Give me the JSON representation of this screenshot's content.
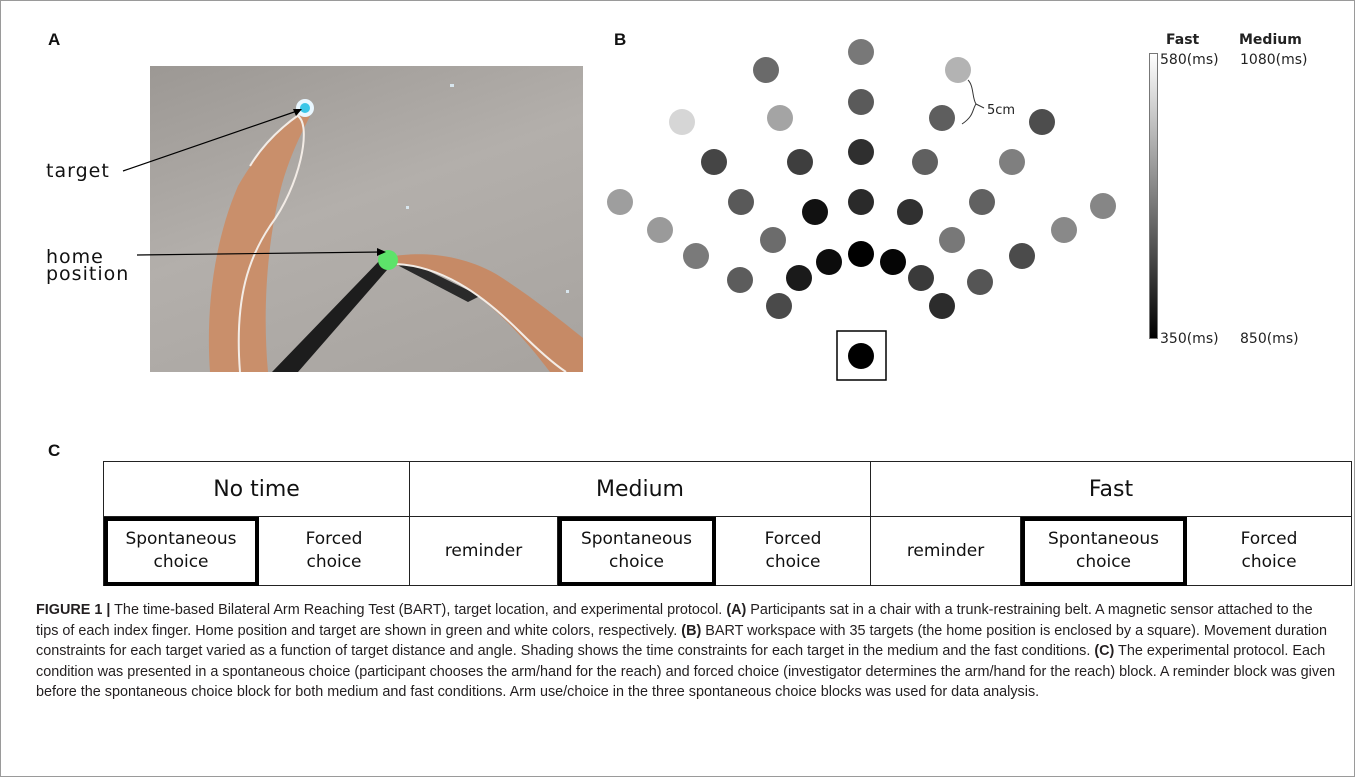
{
  "panels": {
    "a": "A",
    "b": "B",
    "c": "C"
  },
  "panel_a": {
    "target_label": "target",
    "home_label_line1": "home",
    "home_label_line2": "position"
  },
  "panel_b": {
    "scale_label": "5cm",
    "colorbar": {
      "head_fast": "Fast",
      "head_medium": "Medium",
      "top_fast": "580(ms)",
      "top_medium": "1080(ms)",
      "bottom_fast": "350(ms)",
      "bottom_medium": "850(ms)"
    },
    "target_shades": [
      "#787878",
      "#6a6a6a",
      "#b3b3b3",
      "#5a5a5a",
      "#d6d6d6",
      "#a4a4a4",
      "#5e5e5e",
      "#4d4d4d",
      "#2f2f2f",
      "#454545",
      "#3e3e3e",
      "#606060",
      "#7f7f7f",
      "#9e9e9e",
      "#595959",
      "#111111",
      "#2a2a2a",
      "#303030",
      "#616161",
      "#868686",
      "#0c0c0c",
      "#000000",
      "#050505",
      "#1a1a1a",
      "#3a3a3a",
      "#6c6c6c",
      "#787878",
      "#9a9a9a",
      "#898989",
      "#7a7a7a",
      "#4b4b4b",
      "#5c5c5c",
      "#555555",
      "#4a4a4a",
      "#2c2c2c"
    ],
    "home_color": "#000000"
  },
  "protocol": {
    "groups": [
      "No time",
      "Medium",
      "Fast"
    ],
    "cells": [
      {
        "line1": "Spontaneous",
        "line2": "choice",
        "highlight": true
      },
      {
        "line1": "Forced",
        "line2": "choice",
        "highlight": false
      },
      {
        "line1": "reminder",
        "line2": "",
        "highlight": false
      },
      {
        "line1": "Spontaneous",
        "line2": "choice",
        "highlight": true
      },
      {
        "line1": "Forced",
        "line2": "choice",
        "highlight": false
      },
      {
        "line1": "reminder",
        "line2": "",
        "highlight": false
      },
      {
        "line1": "Spontaneous",
        "line2": "choice",
        "highlight": true
      },
      {
        "line1": "Forced",
        "line2": "choice",
        "highlight": false
      }
    ]
  },
  "caption": {
    "figure_label": "FIGURE 1 |",
    "intro": " The time-based Bilateral Arm Reaching Test (BART), target location, and experimental protocol. ",
    "a_tag": "(A)",
    "a_text": " Participants sat in a chair with a trunk-restraining belt. A magnetic sensor attached to the tips of each index finger. Home position and target are shown in green and white colors, respectively. ",
    "b_tag": "(B)",
    "b_text": " BART workspace with 35 targets (the home position is enclosed by a square). Movement duration constraints for each target varied as a function of target distance and angle. Shading shows the time constraints for each target in the medium and the fast conditions. ",
    "c_tag": "(C)",
    "c_text": " The experimental protocol. Each condition was presented in a spontaneous choice (participant chooses the arm/hand for the reach) and forced choice (investigator determines the arm/hand for the reach) block. A reminder block was given before the spontaneous choice block for both medium and fast conditions. Arm use/choice in the three spontaneous choice blocks was used for data analysis."
  }
}
